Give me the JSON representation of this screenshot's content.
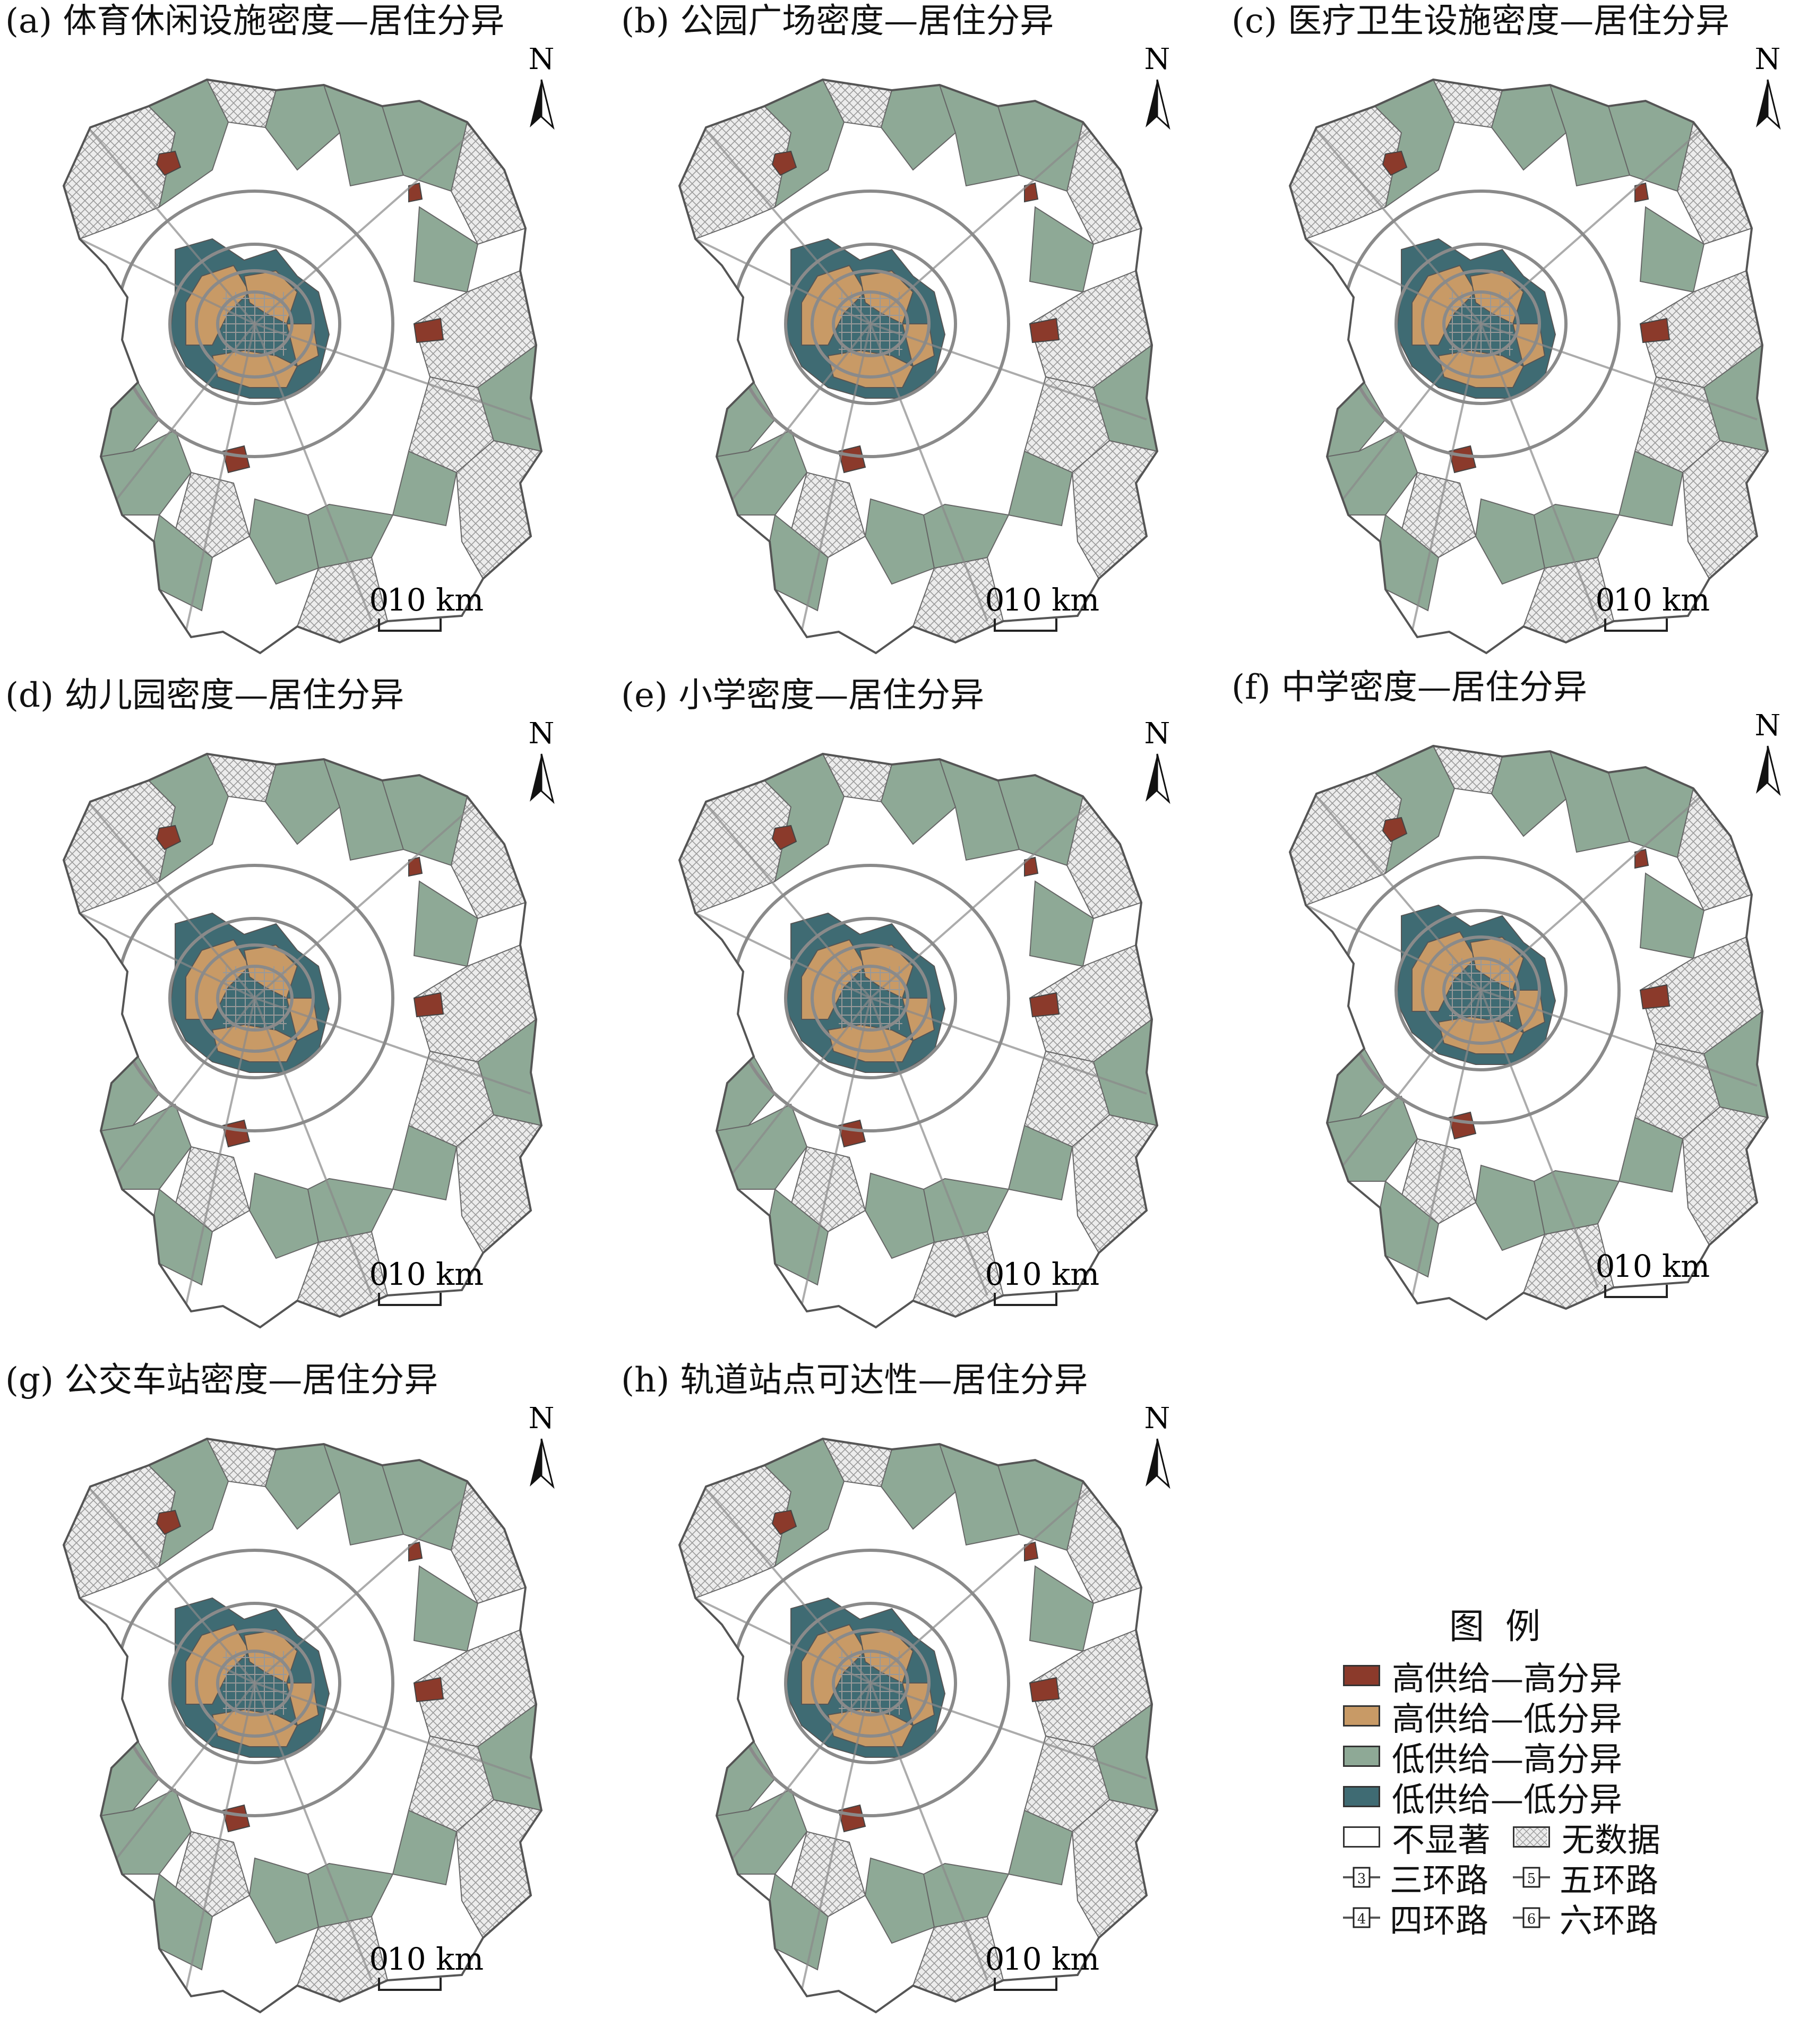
{
  "panels": [
    {
      "id": "a",
      "title": "(a) 体育休闲设施密度—居住分异"
    },
    {
      "id": "b",
      "title": "(b) 公园广场密度—居住分异"
    },
    {
      "id": "c",
      "title": "(c) 医疗卫生设施密度—居住分异"
    },
    {
      "id": "d",
      "title": "(d) 幼儿园密度—居住分异"
    },
    {
      "id": "e",
      "title": "(e) 小学密度—居住分异"
    },
    {
      "id": "f",
      "title": "(f) 中学密度—居住分异"
    },
    {
      "id": "g",
      "title": "(g) 公交车站密度—居住分异"
    },
    {
      "id": "h",
      "title": "(h) 轨道站点可达性—居住分异"
    }
  ],
  "north_label": "N",
  "scale": {
    "zero": "0",
    "ten": "10 km"
  },
  "legend": {
    "title": "图例",
    "classes": [
      {
        "label": "高供给—高分异",
        "color": "#8b3a2b"
      },
      {
        "label": "高供给—低分异",
        "color": "#c89a66"
      },
      {
        "label": "低供给—高分异",
        "color": "#8ea996"
      },
      {
        "label": "低供给—低分异",
        "color": "#3f6b73"
      }
    ],
    "not_significant": "不显著",
    "no_data": "无数据",
    "roads": [
      {
        "num": "3",
        "label": "三环路"
      },
      {
        "num": "5",
        "label": "五环路"
      },
      {
        "num": "4",
        "label": "四环路"
      },
      {
        "num": "6",
        "label": "六环路"
      }
    ]
  },
  "colors": {
    "hh": "#8b3a2b",
    "hl": "#c89a66",
    "lh": "#8ea996",
    "ll": "#3f6b73",
    "nodata_bg": "#ececec",
    "road": "#8a8a8a"
  }
}
